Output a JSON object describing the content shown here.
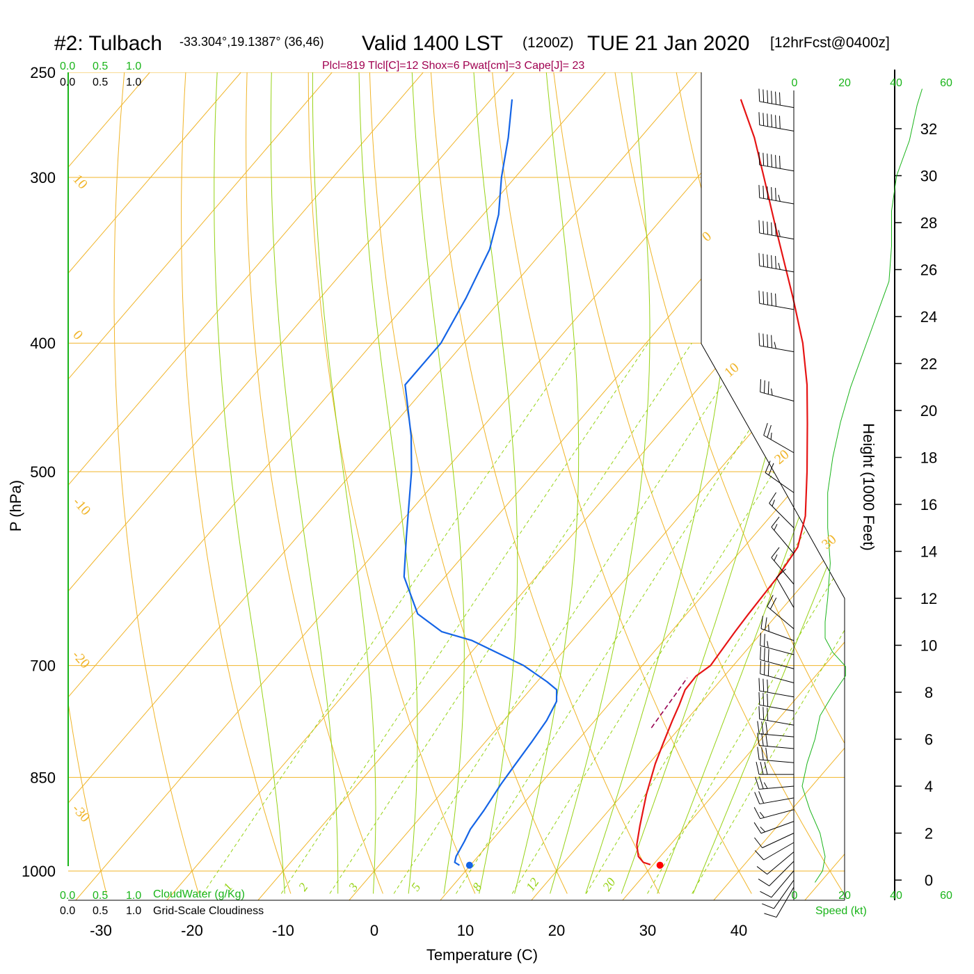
{
  "header": {
    "station": "#2: Tulbach",
    "coords": "-33.304°,19.1387° (36,46)",
    "valid": "Valid 1400 LST",
    "zulu": "(1200Z)",
    "date": "TUE 21 Jan 2020",
    "forecast": "[12hrFcst@0400z]"
  },
  "indices": "Plcl=819 Tlcl[C]=12 Shox=6 Pwat[cm]=3 Cape[J]= 23",
  "scales": {
    "cloudwater_ticks": [
      "0.0",
      "0.5",
      "1.0"
    ],
    "cloudiness_ticks": [
      "0.0",
      "0.5",
      "1.0"
    ],
    "cloudwater_label": "CloudWater (g/Kg)",
    "cloudiness_label": "Grid-Scale Cloudiness",
    "speed_ticks": [
      "0",
      "20",
      "40",
      "60"
    ],
    "speed_label": "Speed (kt)"
  },
  "chart_data": {
    "type": "skew-t",
    "xlabel": "Temperature (C)",
    "ylabel": "P (hPa)",
    "y2label": "Height (1000 Feet)",
    "pressure_ticks": [
      250,
      300,
      400,
      500,
      700,
      850,
      1000
    ],
    "temp_ticks": [
      -30,
      -20,
      -10,
      0,
      10,
      20,
      30,
      40
    ],
    "height_ticks": [
      0,
      2,
      4,
      6,
      8,
      10,
      12,
      14,
      16,
      18,
      20,
      22,
      24,
      26,
      28,
      30,
      32
    ],
    "dry_adiabat_labels": [
      "-10",
      "0",
      "10",
      "20",
      "30"
    ],
    "isotherm_labels": [
      "10",
      "0",
      "-10",
      "-20",
      "-30"
    ],
    "mixing_ratio_labels": [
      "1",
      "2",
      "3",
      "5",
      "8",
      "12",
      "20"
    ],
    "temperature_profile": {
      "name": "Temperature",
      "color": "#e61414",
      "points": [
        {
          "p": 989,
          "t": 29.7
        },
        {
          "p": 985,
          "t": 28.7
        },
        {
          "p": 975,
          "t": 27.6
        },
        {
          "p": 955,
          "t": 26.3
        },
        {
          "p": 925,
          "t": 24.9
        },
        {
          "p": 875,
          "t": 22.6
        },
        {
          "p": 830,
          "t": 20.7
        },
        {
          "p": 800,
          "t": 19.6
        },
        {
          "p": 770,
          "t": 18.5
        },
        {
          "p": 750,
          "t": 17.8
        },
        {
          "p": 730,
          "t": 17.0
        },
        {
          "p": 713,
          "t": 16.9
        },
        {
          "p": 700,
          "t": 17.5
        },
        {
          "p": 660,
          "t": 17.0
        },
        {
          "p": 640,
          "t": 16.8
        },
        {
          "p": 600,
          "t": 16.5
        },
        {
          "p": 570,
          "t": 15.9
        },
        {
          "p": 540,
          "t": 13.8
        },
        {
          "p": 500,
          "t": 9.8
        },
        {
          "p": 460,
          "t": 5.3
        },
        {
          "p": 430,
          "t": 1.6
        },
        {
          "p": 400,
          "t": -2.8
        },
        {
          "p": 370,
          "t": -8.1
        },
        {
          "p": 330,
          "t": -16.1
        },
        {
          "p": 300,
          "t": -22.7
        },
        {
          "p": 280,
          "t": -27.5
        },
        {
          "p": 262,
          "t": -32.6
        }
      ]
    },
    "dewpoint_profile": {
      "name": "Dewpoint",
      "color": "#1464e6",
      "points": [
        {
          "p": 990,
          "t": 8.8
        },
        {
          "p": 985,
          "t": 8.0
        },
        {
          "p": 975,
          "t": 7.6
        },
        {
          "p": 950,
          "t": 7.1
        },
        {
          "p": 930,
          "t": 6.6
        },
        {
          "p": 900,
          "t": 6.3
        },
        {
          "p": 860,
          "t": 5.7
        },
        {
          "p": 830,
          "t": 5.4
        },
        {
          "p": 800,
          "t": 5.1
        },
        {
          "p": 770,
          "t": 4.7
        },
        {
          "p": 745,
          "t": 4.0
        },
        {
          "p": 730,
          "t": 2.9
        },
        {
          "p": 720,
          "t": 1.1
        },
        {
          "p": 700,
          "t": -3.0
        },
        {
          "p": 670,
          "t": -11.1
        },
        {
          "p": 660,
          "t": -15.2
        },
        {
          "p": 640,
          "t": -19.5
        },
        {
          "p": 600,
          "t": -24.5
        },
        {
          "p": 560,
          "t": -28.0
        },
        {
          "p": 500,
          "t": -33.6
        },
        {
          "p": 470,
          "t": -37.0
        },
        {
          "p": 430,
          "t": -42.5
        },
        {
          "p": 400,
          "t": -42.5
        },
        {
          "p": 370,
          "t": -44.0
        },
        {
          "p": 340,
          "t": -46.0
        },
        {
          "p": 320,
          "t": -48.3
        },
        {
          "p": 300,
          "t": -51.5
        },
        {
          "p": 280,
          "t": -54.5
        },
        {
          "p": 262,
          "t": -57.7
        }
      ]
    },
    "parcel_segment": {
      "name": "Parcel",
      "color": "#960050",
      "points": [
        {
          "p": 780,
          "t": 16.9
        },
        {
          "p": 730,
          "t": 16.3
        },
        {
          "p": 715,
          "t": 16.1
        }
      ]
    },
    "surface_temperature": {
      "p": 990,
      "t": 30.8,
      "color": "#ff0000"
    },
    "surface_dewpoint": {
      "p": 990,
      "t": 9.9,
      "color": "#1464e6"
    },
    "wind_barbs": [
      {
        "z_kft": 32.9,
        "dir": 280,
        "spd_kt": 60
      },
      {
        "z_kft": 31.9,
        "dir": 280,
        "spd_kt": 60
      },
      {
        "z_kft": 30.2,
        "dir": 280,
        "spd_kt": 60
      },
      {
        "z_kft": 28.8,
        "dir": 280,
        "spd_kt": 55
      },
      {
        "z_kft": 27.3,
        "dir": 280,
        "spd_kt": 55
      },
      {
        "z_kft": 25.9,
        "dir": 280,
        "spd_kt": 55
      },
      {
        "z_kft": 24.3,
        "dir": 280,
        "spd_kt": 50
      },
      {
        "z_kft": 22.5,
        "dir": 280,
        "spd_kt": 45
      },
      {
        "z_kft": 20.4,
        "dir": 285,
        "spd_kt": 35
      },
      {
        "z_kft": 18.2,
        "dir": 300,
        "spd_kt": 25
      },
      {
        "z_kft": 16.5,
        "dir": 305,
        "spd_kt": 20
      },
      {
        "z_kft": 15.0,
        "dir": 315,
        "spd_kt": 15
      },
      {
        "z_kft": 13.9,
        "dir": 320,
        "spd_kt": 15
      },
      {
        "z_kft": 12.6,
        "dir": 320,
        "spd_kt": 15
      },
      {
        "z_kft": 11.6,
        "dir": 330,
        "spd_kt": 10
      },
      {
        "z_kft": 10.7,
        "dir": 310,
        "spd_kt": 20
      },
      {
        "z_kft": 10.2,
        "dir": 290,
        "spd_kt": 25
      },
      {
        "z_kft": 9.6,
        "dir": 285,
        "spd_kt": 25
      },
      {
        "z_kft": 9.0,
        "dir": 285,
        "spd_kt": 30
      },
      {
        "z_kft": 8.4,
        "dir": 285,
        "spd_kt": 30
      },
      {
        "z_kft": 7.8,
        "dir": 280,
        "spd_kt": 30
      },
      {
        "z_kft": 7.2,
        "dir": 280,
        "spd_kt": 30
      },
      {
        "z_kft": 6.6,
        "dir": 280,
        "spd_kt": 30
      },
      {
        "z_kft": 6.1,
        "dir": 275,
        "spd_kt": 30
      },
      {
        "z_kft": 5.6,
        "dir": 275,
        "spd_kt": 30
      },
      {
        "z_kft": 5.0,
        "dir": 275,
        "spd_kt": 30
      },
      {
        "z_kft": 4.5,
        "dir": 270,
        "spd_kt": 30
      },
      {
        "z_kft": 4.0,
        "dir": 265,
        "spd_kt": 25
      },
      {
        "z_kft": 3.5,
        "dir": 260,
        "spd_kt": 20
      },
      {
        "z_kft": 3.0,
        "dir": 255,
        "spd_kt": 15
      },
      {
        "z_kft": 2.5,
        "dir": 250,
        "spd_kt": 15
      },
      {
        "z_kft": 2.0,
        "dir": 245,
        "spd_kt": 10
      },
      {
        "z_kft": 1.6,
        "dir": 240,
        "spd_kt": 10
      },
      {
        "z_kft": 1.2,
        "dir": 230,
        "spd_kt": 10
      },
      {
        "z_kft": 0.8,
        "dir": 225,
        "spd_kt": 10
      },
      {
        "z_kft": 0.4,
        "dir": 220,
        "spd_kt": 10
      },
      {
        "z_kft": 0.0,
        "dir": 215,
        "spd_kt": 10
      },
      {
        "z_kft": -0.3,
        "dir": 210,
        "spd_kt": 10
      }
    ],
    "wind_speed_profile": [
      {
        "z_kft": -0.1,
        "spd_kt": 8
      },
      {
        "z_kft": 0.4,
        "spd_kt": 11
      },
      {
        "z_kft": 1.0,
        "spd_kt": 12
      },
      {
        "z_kft": 2.0,
        "spd_kt": 10
      },
      {
        "z_kft": 3.0,
        "spd_kt": 6
      },
      {
        "z_kft": 4.0,
        "spd_kt": 3
      },
      {
        "z_kft": 5.0,
        "spd_kt": 5
      },
      {
        "z_kft": 6.0,
        "spd_kt": 8
      },
      {
        "z_kft": 7.0,
        "spd_kt": 10
      },
      {
        "z_kft": 7.9,
        "spd_kt": 15
      },
      {
        "z_kft": 8.7,
        "spd_kt": 20
      },
      {
        "z_kft": 9.1,
        "spd_kt": 20
      },
      {
        "z_kft": 9.7,
        "spd_kt": 15
      },
      {
        "z_kft": 10.3,
        "spd_kt": 12
      },
      {
        "z_kft": 11.0,
        "spd_kt": 12
      },
      {
        "z_kft": 12.0,
        "spd_kt": 13
      },
      {
        "z_kft": 13.5,
        "spd_kt": 14
      },
      {
        "z_kft": 15.0,
        "spd_kt": 13
      },
      {
        "z_kft": 16.5,
        "spd_kt": 13
      },
      {
        "z_kft": 18.0,
        "spd_kt": 15
      },
      {
        "z_kft": 19.5,
        "spd_kt": 18
      },
      {
        "z_kft": 21.0,
        "spd_kt": 22
      },
      {
        "z_kft": 22.5,
        "spd_kt": 27
      },
      {
        "z_kft": 24.0,
        "spd_kt": 32
      },
      {
        "z_kft": 25.5,
        "spd_kt": 37
      },
      {
        "z_kft": 27.0,
        "spd_kt": 38
      },
      {
        "z_kft": 28.5,
        "spd_kt": 38
      },
      {
        "z_kft": 30.0,
        "spd_kt": 40
      },
      {
        "z_kft": 31.5,
        "spd_kt": 45
      },
      {
        "z_kft": 33.0,
        "spd_kt": 48
      },
      {
        "z_kft": 33.7,
        "spd_kt": 50
      }
    ]
  }
}
